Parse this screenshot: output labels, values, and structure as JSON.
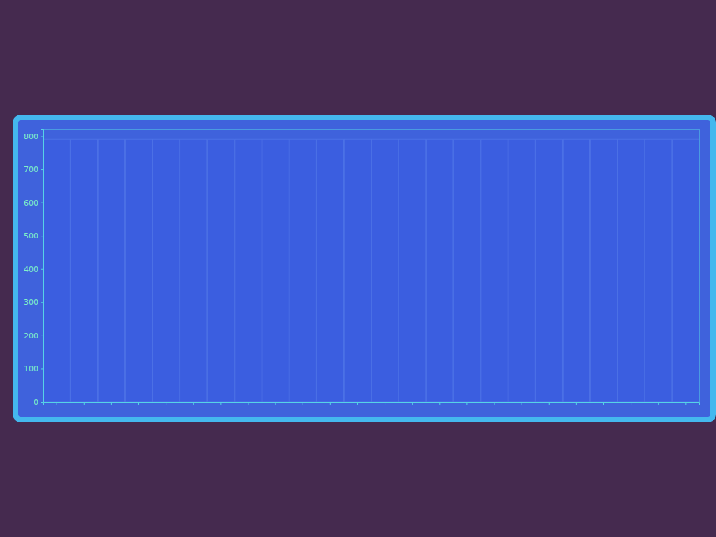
{
  "chart_data": {
    "type": "bar",
    "categories": [
      null,
      null,
      null,
      null,
      null,
      null,
      null,
      null,
      null,
      null,
      null,
      null,
      null,
      null,
      null,
      null,
      null,
      null,
      null,
      null,
      null,
      null,
      null,
      null
    ],
    "values": [
      790,
      790,
      790,
      790,
      790,
      790,
      790,
      790,
      790,
      790,
      790,
      790,
      790,
      790,
      790,
      790,
      790,
      790,
      790,
      790,
      790,
      790,
      790,
      790
    ],
    "color": "#3b5ee0",
    "ylim": [
      0,
      820
    ],
    "yticks": [
      0,
      100,
      200,
      300,
      400,
      500,
      600,
      700,
      800
    ],
    "grid": false,
    "tick_labels": "y"
  }
}
